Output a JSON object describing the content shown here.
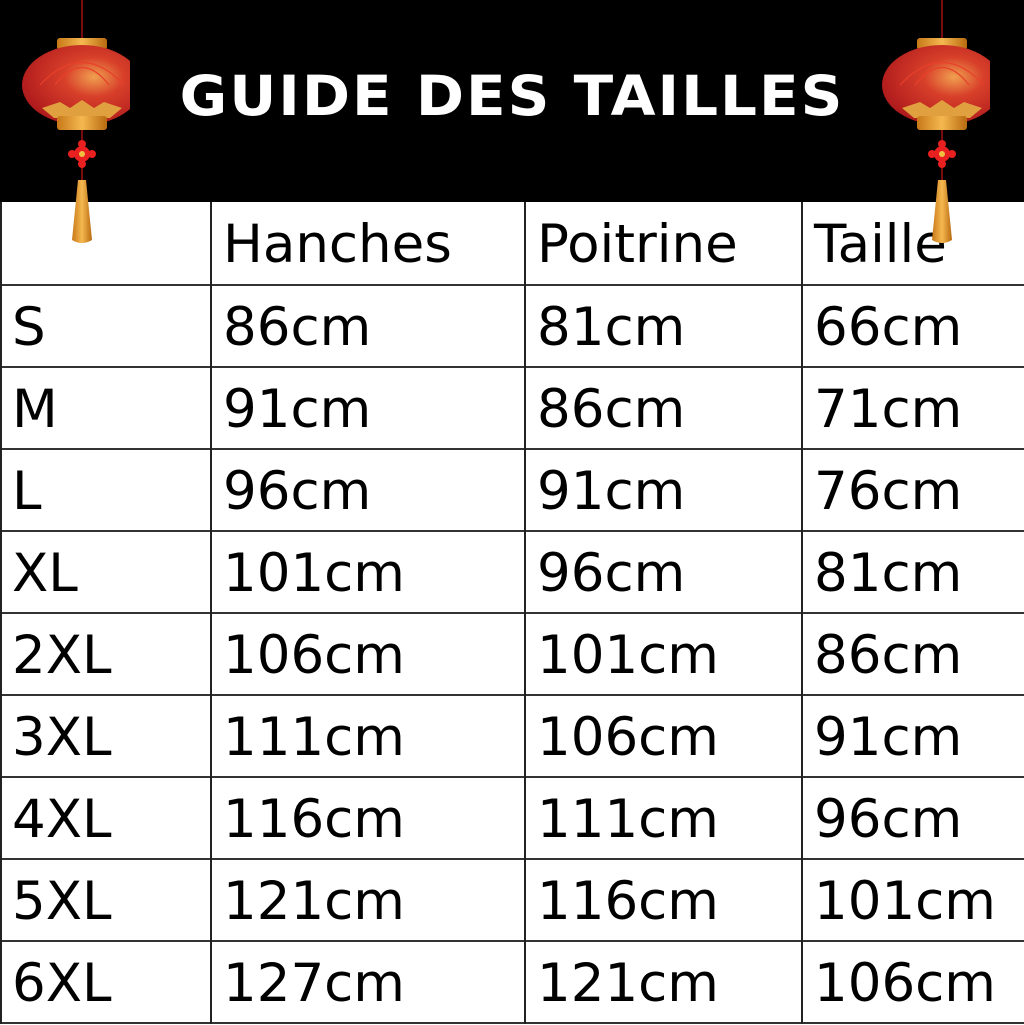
{
  "title": "GUIDE DES TAILLES",
  "decorations": {
    "left_icon": "chinese-lantern",
    "right_icon": "chinese-lantern"
  },
  "colors": {
    "header_bg": "#000000",
    "lantern_red": "#c8201c",
    "lantern_gold": "#e39a2c"
  },
  "table": {
    "headers": [
      "",
      "Hanches",
      "Poitrine",
      "Taille"
    ],
    "rows": [
      [
        "S",
        "86cm",
        "81cm",
        "66cm"
      ],
      [
        "M",
        "91cm",
        "86cm",
        "71cm"
      ],
      [
        "L",
        "96cm",
        "91cm",
        "76cm"
      ],
      [
        "XL",
        "101cm",
        "96cm",
        "81cm"
      ],
      [
        "2XL",
        "106cm",
        "101cm",
        "86cm"
      ],
      [
        "3XL",
        "111cm",
        "106cm",
        "91cm"
      ],
      [
        "4XL",
        "116cm",
        "111cm",
        "96cm"
      ],
      [
        "5XL",
        "121cm",
        "116cm",
        "101cm"
      ],
      [
        "6XL",
        "127cm",
        "121cm",
        "106cm"
      ]
    ]
  }
}
